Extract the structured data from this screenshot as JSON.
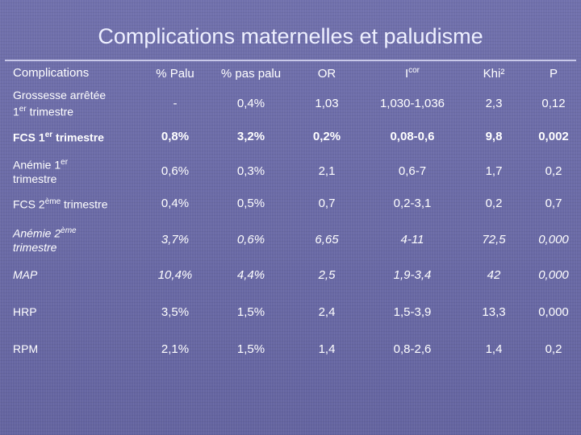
{
  "title": "Complications maternelles et paludisme",
  "headers": {
    "complications": "Complications",
    "palu": "% Palu",
    "pas_palu": "% pas palu",
    "or": "OR",
    "icor": "I",
    "icor_sup": "cor",
    "khi": "Khi²",
    "p": "P"
  },
  "rows": [
    {
      "label": "Grossesse arrêtée",
      "label_line2_sup": "er",
      "label_line2_pre": "1",
      "label_line2": " trimestre",
      "palu": "-",
      "pas_palu": "0,4%",
      "or": "1,03",
      "icor": "1,030-1,036",
      "khi": "2,3",
      "p": "0,12"
    },
    {
      "label_pre": "FCS 1",
      "label_sup": "er",
      "label_post": " trimestre",
      "palu": "0,8%",
      "pas_palu": "3,2%",
      "or": "0,2%",
      "icor": "0,08-0,6",
      "khi": "9,8",
      "p": "0,002"
    },
    {
      "label_pre": "Anémie 1",
      "label_sup": "er",
      "label_line2": "trimestre",
      "palu": "0,6%",
      "pas_palu": "0,3%",
      "or": "2,1",
      "icor": "0,6-7",
      "khi": "1,7",
      "p": "0,2"
    },
    {
      "label_pre": "FCS 2",
      "label_sup": "ème",
      "label_post": " trimestre",
      "palu": "0,4%",
      "pas_palu": "0,5%",
      "or": "0,7",
      "icor": "0,2-3,1",
      "khi": "0,2",
      "p": "0,7"
    },
    {
      "label_pre": "Anémie 2",
      "label_sup": "ème",
      "label_line2": "trimestre",
      "palu": "3,7%",
      "pas_palu": "0,6%",
      "or": "6,65",
      "icor": "4-11",
      "khi": "72,5",
      "p": "0,000"
    },
    {
      "label": "MAP",
      "palu": "10,4%",
      "pas_palu": "4,4%",
      "or": "2,5",
      "icor": "1,9-3,4",
      "khi": "42",
      "p": "0,000"
    },
    {
      "label": "HRP",
      "palu": "3,5%",
      "pas_palu": "1,5%",
      "or": "2,4",
      "icor": "1,5-3,9",
      "khi": "13,3",
      "p": "0,000"
    },
    {
      "label": "RPM",
      "palu": "2,1%",
      "pas_palu": "1,5%",
      "or": "1,4",
      "icor": "0,8-2,6",
      "khi": "1,4",
      "p": "0,2"
    }
  ]
}
